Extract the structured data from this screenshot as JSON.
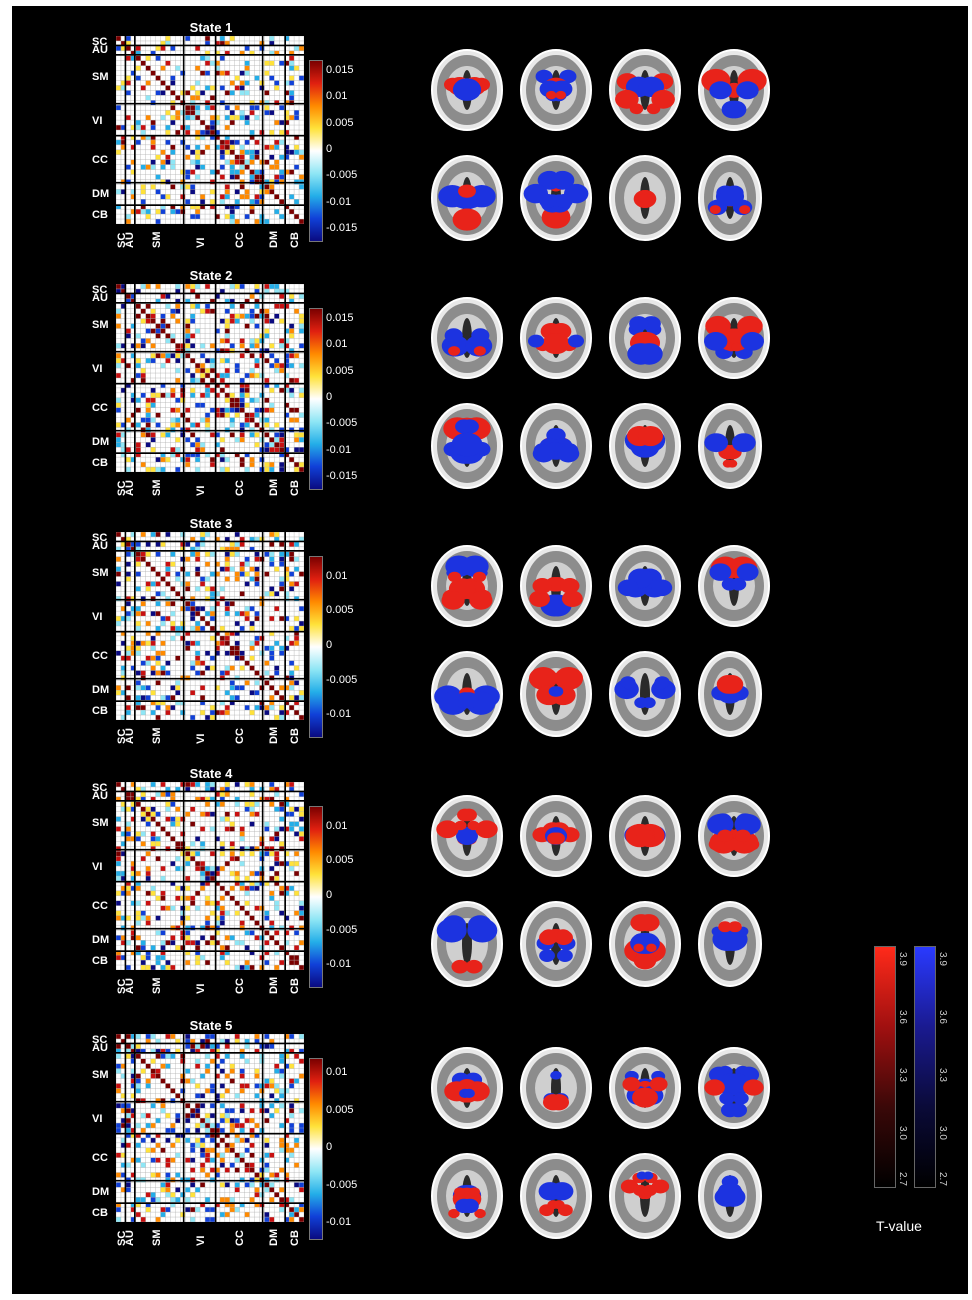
{
  "network_labels": [
    "SC",
    "AU",
    "SM",
    "VI",
    "CC",
    "DM",
    "CB"
  ],
  "colors": {
    "background": "#000000",
    "positive": "#e8231a",
    "negative": "#1c33e0",
    "matrix_hot": [
      "#ffffff",
      "#ffe23a",
      "#ff8a00",
      "#c81010",
      "#7a0000"
    ],
    "matrix_cold": [
      "#ffffff",
      "#8fe6f5",
      "#24aee8",
      "#1040d8",
      "#0a0a80"
    ]
  },
  "states": [
    {
      "title": "State 1",
      "colorbar_ticks": [
        "0.015",
        "0.01",
        "0.005",
        "0",
        "-0.005",
        "-0.01",
        "-0.015"
      ],
      "colorbar_limit": 0.017
    },
    {
      "title": "State 2",
      "colorbar_ticks": [
        "0.015",
        "0.01",
        "0.005",
        "0",
        "-0.005",
        "-0.01",
        "-0.015"
      ],
      "colorbar_limit": 0.017
    },
    {
      "title": "State 3",
      "colorbar_ticks": [
        "0.01",
        "0.005",
        "0",
        "-0.005",
        "-0.01"
      ],
      "colorbar_limit": 0.013
    },
    {
      "title": "State 4",
      "colorbar_ticks": [
        "0.01",
        "0.005",
        "0",
        "-0.005",
        "-0.01"
      ],
      "colorbar_limit": 0.013
    },
    {
      "title": "State 5",
      "colorbar_ticks": [
        "0.01",
        "0.005",
        "0",
        "-0.005",
        "-0.01"
      ],
      "colorbar_limit": 0.012
    }
  ],
  "tvalue_colorbar": {
    "label": "T-value",
    "ticks": [
      "3.9",
      "3.6",
      "3.3",
      "3.0",
      "2.7"
    ]
  }
}
